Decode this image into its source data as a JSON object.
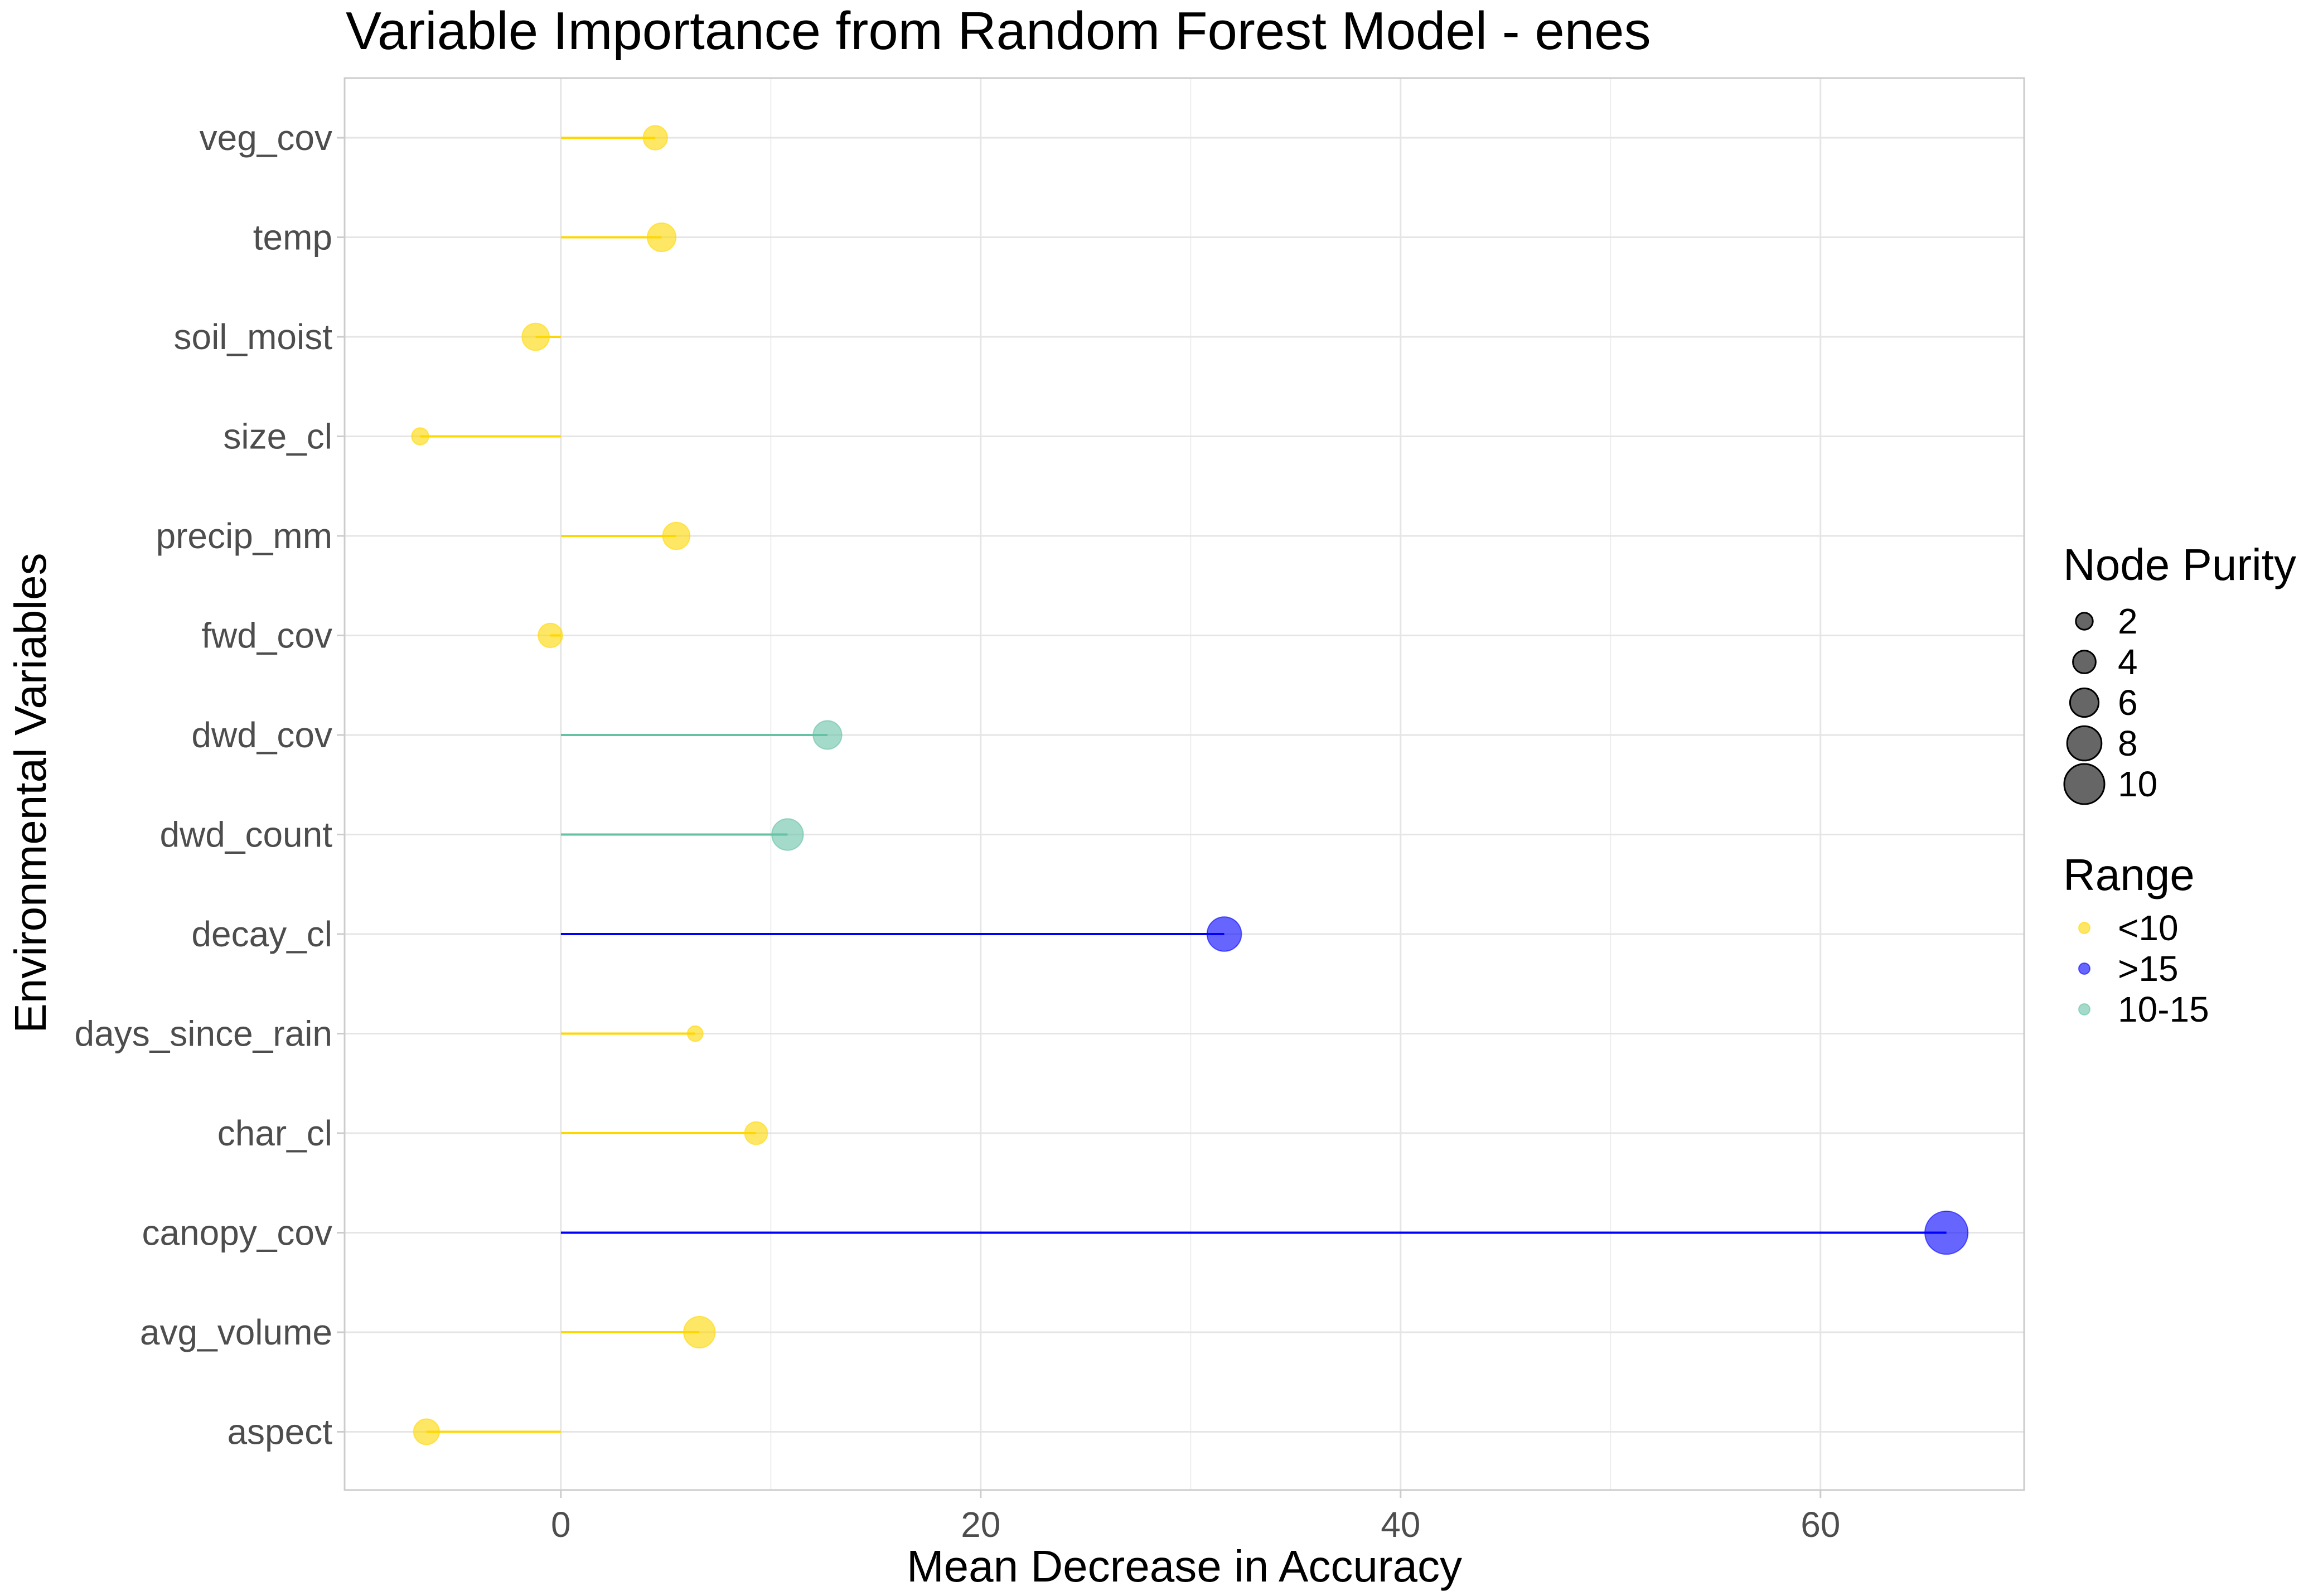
{
  "chart_data": {
    "type": "lollipop",
    "title": "Variable Importance from Random Forest Model - enes",
    "xlabel": "Mean Decrease in Accuracy",
    "ylabel": "Environmental Variables",
    "xlim": [
      -10.3,
      69.7
    ],
    "x_ticks": [
      0,
      20,
      40,
      60
    ],
    "x_tick_labels": [
      "0",
      "20",
      "40",
      "60"
    ],
    "grid": true,
    "categories": [
      "veg_cov",
      "temp",
      "soil_moist",
      "size_cl",
      "precip_mm",
      "fwd_cov",
      "dwd_cov",
      "dwd_count",
      "decay_cl",
      "days_since_rain",
      "char_cl",
      "canopy_cov",
      "avg_volume",
      "aspect"
    ],
    "points": [
      {
        "variable": "veg_cov",
        "value": 4.5,
        "node_purity": 4.5,
        "range": "<10"
      },
      {
        "variable": "temp",
        "value": 4.8,
        "node_purity": 6.0,
        "range": "<10"
      },
      {
        "variable": "soil_moist",
        "value": -1.2,
        "node_purity": 5.5,
        "range": "<10"
      },
      {
        "variable": "size_cl",
        "value": -6.7,
        "node_purity": 2.0,
        "range": "<10"
      },
      {
        "variable": "precip_mm",
        "value": 5.5,
        "node_purity": 5.5,
        "range": "<10"
      },
      {
        "variable": "fwd_cov",
        "value": -0.5,
        "node_purity": 4.5,
        "range": "<10"
      },
      {
        "variable": "dwd_cov",
        "value": 12.7,
        "node_purity": 6.0,
        "range": "10-15"
      },
      {
        "variable": "dwd_count",
        "value": 10.8,
        "node_purity": 7.0,
        "range": "10-15"
      },
      {
        "variable": "decay_cl",
        "value": 31.6,
        "node_purity": 8.0,
        "range": ">15"
      },
      {
        "variable": "days_since_rain",
        "value": 6.4,
        "node_purity": 1.5,
        "range": "<10"
      },
      {
        "variable": "char_cl",
        "value": 9.3,
        "node_purity": 4.0,
        "range": "<10"
      },
      {
        "variable": "canopy_cov",
        "value": 66.0,
        "node_purity": 11.0,
        "range": ">15"
      },
      {
        "variable": "avg_volume",
        "value": 6.6,
        "node_purity": 7.0,
        "range": "<10"
      },
      {
        "variable": "aspect",
        "value": -6.4,
        "node_purity": 5.0,
        "range": "<10"
      }
    ],
    "legend": {
      "position": "right",
      "size": {
        "title": "Node Purity",
        "entries": [
          {
            "label": "2",
            "value": 2
          },
          {
            "label": "4",
            "value": 4
          },
          {
            "label": "6",
            "value": 6
          },
          {
            "label": "8",
            "value": 8
          },
          {
            "label": "10",
            "value": 10
          }
        ]
      },
      "color": {
        "title": "Range",
        "entries": [
          {
            "label": "<10",
            "color": "#FFD700"
          },
          {
            "label": ">15",
            "color": "#0000FF"
          },
          {
            "label": "10-15",
            "color": "#66C2A5"
          }
        ]
      }
    },
    "colors": {
      "<10": "#FFD700",
      ">15": "#0000FF",
      "10-15": "#66C2A5"
    }
  }
}
